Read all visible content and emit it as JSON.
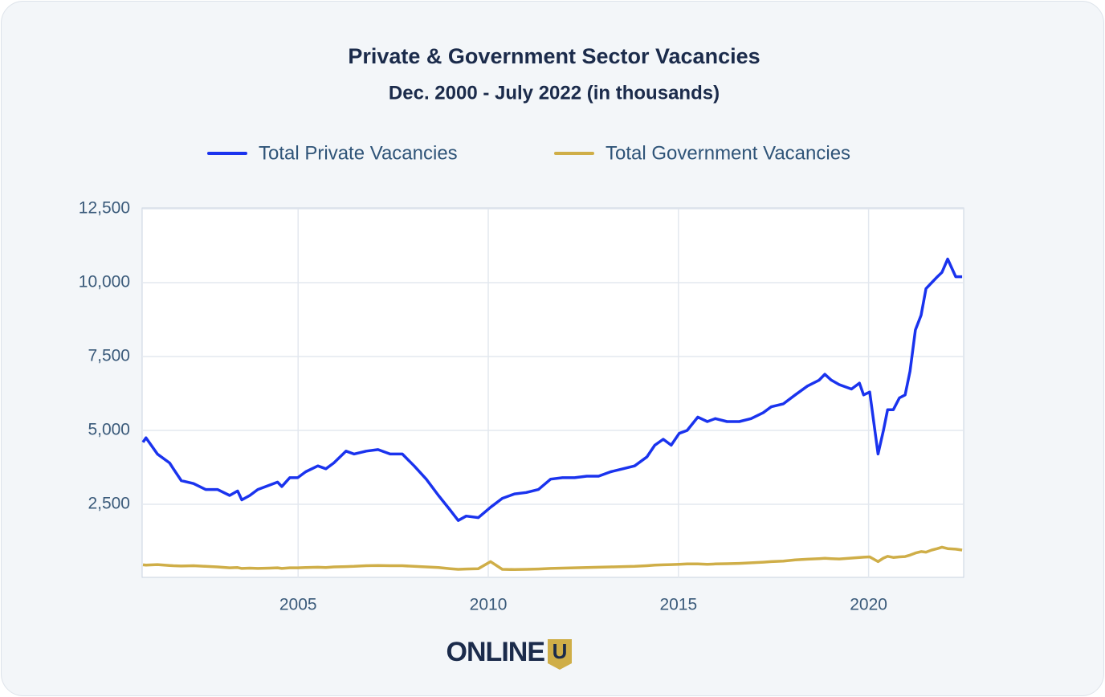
{
  "chart_data": {
    "type": "line",
    "title": "Private & Government Sector Vacancies",
    "subtitle": "Dec. 2000 - July 2022 (in thousands)",
    "x": [
      2000.92,
      2001.0,
      2001.3,
      2001.62,
      2001.72,
      2001.93,
      2002.25,
      2002.57,
      2002.88,
      2003.2,
      2003.41,
      2003.52,
      2003.73,
      2003.94,
      2004.25,
      2004.46,
      2004.57,
      2004.78,
      2004.99,
      2005.2,
      2005.52,
      2005.73,
      2005.94,
      2006.26,
      2006.47,
      2006.79,
      2007.1,
      2007.42,
      2007.74,
      2008.05,
      2008.37,
      2008.69,
      2009.0,
      2009.21,
      2009.42,
      2009.74,
      2010.06,
      2010.37,
      2010.69,
      2011.0,
      2011.32,
      2011.64,
      2011.95,
      2012.27,
      2012.59,
      2012.9,
      2013.22,
      2013.54,
      2013.85,
      2014.17,
      2014.38,
      2014.6,
      2014.81,
      2015.02,
      2015.23,
      2015.51,
      2015.76,
      2015.97,
      2016.28,
      2016.6,
      2016.91,
      2017.23,
      2017.44,
      2017.76,
      2018.07,
      2018.39,
      2018.7,
      2018.85,
      2019.02,
      2019.23,
      2019.55,
      2019.76,
      2019.87,
      2020.03,
      2020.25,
      2020.39,
      2020.5,
      2020.65,
      2020.81,
      2020.96,
      2021.09,
      2021.23,
      2021.38,
      2021.51,
      2021.66,
      2021.81,
      2021.93,
      2022.08,
      2022.29,
      2022.46
    ],
    "series": [
      {
        "name": "Total Private Vacancies",
        "color": "#1a33ee",
        "values": [
          4600,
          4750,
          4200,
          3900,
          3700,
          3300,
          3200,
          3000,
          3000,
          2800,
          2950,
          2650,
          2800,
          3000,
          3150,
          3250,
          3100,
          3400,
          3400,
          3600,
          3800,
          3700,
          3900,
          4300,
          4200,
          4300,
          4350,
          4200,
          4200,
          3800,
          3350,
          2800,
          2300,
          1950,
          2100,
          2050,
          2400,
          2700,
          2850,
          2900,
          3000,
          3350,
          3400,
          3400,
          3450,
          3450,
          3600,
          3700,
          3800,
          4100,
          4500,
          4700,
          4500,
          4900,
          5000,
          5450,
          5300,
          5400,
          5300,
          5300,
          5400,
          5600,
          5800,
          5900,
          6200,
          6500,
          6700,
          6900,
          6700,
          6550,
          6400,
          6600,
          6200,
          6300,
          4200,
          5000,
          5700,
          5700,
          6100,
          6200,
          7000,
          8400,
          8900,
          9800,
          10000,
          10200,
          10350,
          10800,
          10200,
          10200
        ]
      },
      {
        "name": "Total Government Vacancies",
        "color": "#cfae48",
        "values": [
          450,
          440,
          460,
          430,
          420,
          410,
          420,
          400,
          380,
          350,
          360,
          330,
          340,
          330,
          340,
          350,
          330,
          350,
          350,
          360,
          370,
          360,
          380,
          390,
          400,
          420,
          430,
          420,
          420,
          400,
          380,
          360,
          320,
          300,
          310,
          320,
          560,
          300,
          290,
          300,
          310,
          330,
          340,
          350,
          360,
          370,
          380,
          390,
          400,
          420,
          440,
          450,
          460,
          470,
          480,
          480,
          470,
          480,
          490,
          500,
          520,
          540,
          560,
          580,
          620,
          640,
          660,
          670,
          660,
          650,
          680,
          700,
          710,
          720,
          560,
          680,
          740,
          700,
          720,
          730,
          780,
          850,
          900,
          880,
          950,
          1000,
          1050,
          1000,
          980,
          950
        ]
      }
    ],
    "xlim": [
      2000.92,
      2022.5
    ],
    "xticks": [
      2005,
      2010,
      2015,
      2020
    ],
    "ylim": [
      0,
      12500
    ],
    "yticks": [
      {
        "value": 2500,
        "label": "2,500"
      },
      {
        "value": 5000,
        "label": "5,000"
      },
      {
        "value": 7500,
        "label": "7,500"
      },
      {
        "value": 10000,
        "label": "10,000"
      },
      {
        "value": 12500,
        "label": "12,500"
      }
    ],
    "grid": true,
    "legend": "top"
  },
  "logo": {
    "text": "ONLINE",
    "badge": "U"
  }
}
